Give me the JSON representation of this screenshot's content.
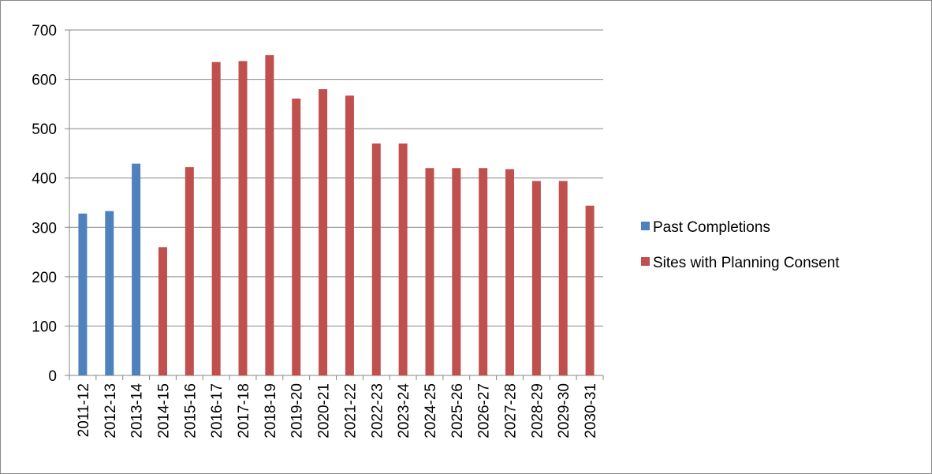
{
  "chart_data": {
    "type": "bar",
    "categories": [
      "2011-12",
      "2012-13",
      "2013-14",
      "2014-15",
      "2015-16",
      "2016-17",
      "2017-18",
      "2018-19",
      "2019-20",
      "2020-21",
      "2021-22",
      "2022-23",
      "2023-24",
      "2024-25",
      "2025-26",
      "2026-27",
      "2027-28",
      "2028-29",
      "2029-30",
      "2030-31"
    ],
    "series": [
      {
        "name": "Past Completions",
        "color": "#4f81bd",
        "values": [
          328,
          333,
          429,
          null,
          null,
          null,
          null,
          null,
          null,
          null,
          null,
          null,
          null,
          null,
          null,
          null,
          null,
          null,
          null,
          null
        ]
      },
      {
        "name": "Sites with Planning Consent",
        "color": "#c0504d",
        "values": [
          null,
          null,
          null,
          260,
          422,
          635,
          637,
          649,
          561,
          580,
          567,
          470,
          470,
          420,
          420,
          420,
          418,
          394,
          394,
          344
        ]
      }
    ],
    "ylim": [
      0,
      700
    ],
    "yticks": [
      0,
      100,
      200,
      300,
      400,
      500,
      600,
      700
    ],
    "grid": true,
    "legend": "right"
  }
}
